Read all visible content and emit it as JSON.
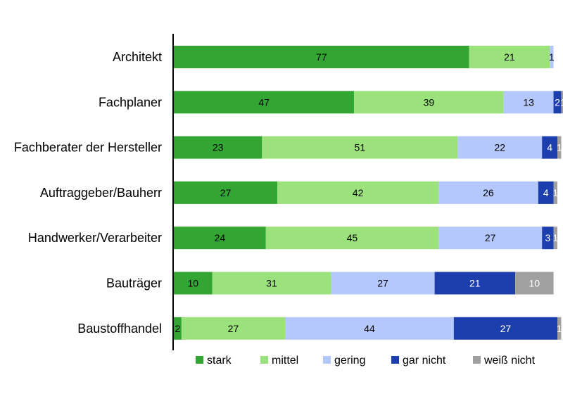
{
  "chart_data": {
    "type": "bar",
    "orientation": "horizontal",
    "stacked": true,
    "title": "",
    "xlabel": "",
    "ylabel": "",
    "xlim": [
      0,
      100
    ],
    "grid": false,
    "legend_position": "bottom",
    "categories": [
      "Architekt",
      "Fachplaner",
      "Fachberater der Hersteller",
      "Auftraggeber/Bauherr",
      "Handwerker/Verarbeiter",
      "Bauträger",
      "Baustoffhandel"
    ],
    "series": [
      {
        "name": "stark",
        "color": "#33a532",
        "label_color": "#000000",
        "values": [
          77,
          47,
          23,
          27,
          24,
          10,
          2
        ]
      },
      {
        "name": "mittel",
        "color": "#9ce27c",
        "label_color": "#000000",
        "values": [
          21,
          39,
          51,
          42,
          45,
          31,
          27
        ]
      },
      {
        "name": "gering",
        "color": "#b4c8fc",
        "label_color": "#000000",
        "values": [
          1,
          13,
          22,
          26,
          27,
          27,
          44
        ]
      },
      {
        "name": "gar nicht",
        "color": "#1d3fae",
        "label_color": "#ffffff",
        "values": [
          0,
          2,
          4,
          4,
          3,
          21,
          27
        ]
      },
      {
        "name": "weiß nicht",
        "color": "#a0a0a0",
        "label_color": "#ffffff",
        "values": [
          0,
          1,
          1,
          1,
          1,
          10,
          1
        ]
      }
    ]
  }
}
